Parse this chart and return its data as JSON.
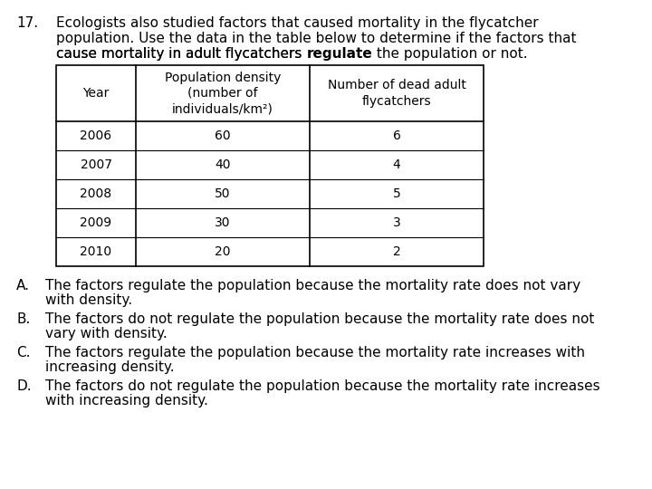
{
  "question_number": "17.",
  "q_line1": "Ecologists also studied factors that caused mortality in the flycatcher",
  "q_line2": "population. Use the data in the table below to determine if the factors that",
  "q_line3_pre": "cause mortality in adult flycatchers ",
  "q_line3_bold": "regulate",
  "q_line3_post": " the population or not.",
  "table_headers": [
    "Year",
    "Population density\n(number of\nindividuals/km²)",
    "Number of dead adult\nflycatchers"
  ],
  "table_data": [
    [
      "2006",
      "60",
      "6"
    ],
    [
      "2007",
      "40",
      "4"
    ],
    [
      "2008",
      "50",
      "5"
    ],
    [
      "2009",
      "30",
      "3"
    ],
    [
      "2010",
      "20",
      "2"
    ]
  ],
  "answers": [
    [
      "A.",
      "The factors regulate the population because the mortality rate does not vary",
      "with density."
    ],
    [
      "B.",
      "The factors do not regulate the population because the mortality rate does not",
      "vary with density."
    ],
    [
      "C.",
      "The factors regulate the population because the mortality rate increases with",
      "increasing density."
    ],
    [
      "D.",
      "The factors do not regulate the population because the mortality rate increases",
      "with increasing density."
    ]
  ],
  "bg_color": "#ffffff",
  "text_color": "#000000",
  "font_size_q": 11.0,
  "font_size_table": 10.0,
  "font_size_ans": 11.0
}
